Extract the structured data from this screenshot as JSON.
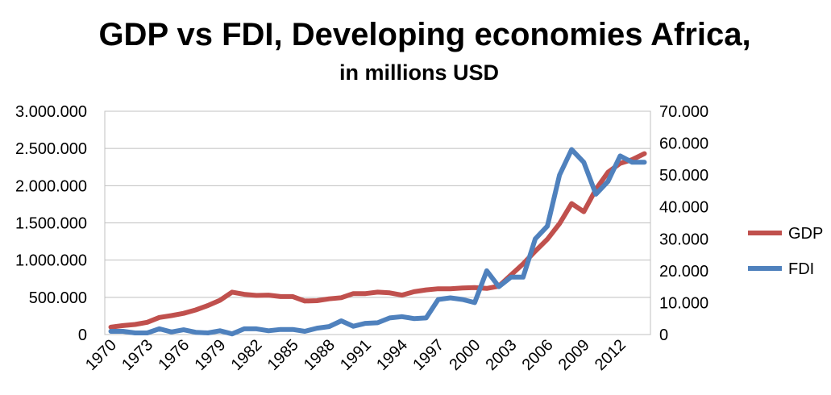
{
  "chart_data": {
    "type": "line",
    "title": "GDP vs FDI, Developing economies Africa,",
    "subtitle": "in millions USD",
    "x": [
      1970,
      1971,
      1972,
      1973,
      1974,
      1975,
      1976,
      1977,
      1978,
      1979,
      1980,
      1981,
      1982,
      1983,
      1984,
      1985,
      1986,
      1987,
      1988,
      1989,
      1990,
      1991,
      1992,
      1993,
      1994,
      1995,
      1996,
      1997,
      1998,
      1999,
      2000,
      2001,
      2002,
      2003,
      2004,
      2005,
      2006,
      2007,
      2008,
      2009,
      2010,
      2011,
      2012,
      2013,
      2014
    ],
    "x_tick_labels": [
      "1970",
      "1973",
      "1976",
      "1979",
      "1982",
      "1985",
      "1988",
      "1991",
      "1994",
      "1997",
      "2000",
      "2003",
      "2006",
      "2009",
      "2012"
    ],
    "y_left": {
      "ylim": [
        0,
        3000000
      ],
      "tick_labels": [
        "0",
        "500.000",
        "1.000.000",
        "1.500.000",
        "2.000.000",
        "2.500.000",
        "3.000.000"
      ],
      "tick_values": [
        0,
        500000,
        1000000,
        1500000,
        2000000,
        2500000,
        3000000
      ]
    },
    "y_right": {
      "ylim": [
        0,
        70000
      ],
      "tick_labels": [
        "0",
        "10.000",
        "20.000",
        "30.000",
        "40.000",
        "50.000",
        "60.000",
        "70.000"
      ],
      "tick_values": [
        0,
        10000,
        20000,
        30000,
        40000,
        50000,
        60000,
        70000
      ]
    },
    "grid": "horizontal",
    "legend_position": "right",
    "series": [
      {
        "name": "GDP",
        "axis": "left",
        "color": "#C0504D",
        "values": [
          100000,
          120000,
          135000,
          165000,
          230000,
          255000,
          285000,
          330000,
          390000,
          460000,
          570000,
          540000,
          525000,
          530000,
          510000,
          510000,
          450000,
          455000,
          480000,
          495000,
          550000,
          550000,
          570000,
          560000,
          530000,
          575000,
          600000,
          615000,
          615000,
          625000,
          630000,
          620000,
          650000,
          800000,
          950000,
          1120000,
          1280000,
          1490000,
          1760000,
          1650000,
          1950000,
          2180000,
          2300000,
          2350000,
          2430000
        ]
      },
      {
        "name": "FDI",
        "axis": "right",
        "color": "#4F81BD",
        "values": [
          1000,
          1000,
          500,
          500,
          1800,
          800,
          1500,
          700,
          500,
          1200,
          200,
          1800,
          1800,
          1200,
          1600,
          1600,
          1000,
          2000,
          2500,
          4300,
          2600,
          3500,
          3700,
          5200,
          5600,
          5000,
          5200,
          11000,
          11500,
          11000,
          10000,
          20000,
          15000,
          18000,
          18000,
          30000,
          34000,
          50000,
          58000,
          54000,
          44000,
          48000,
          56000,
          54000,
          54000
        ]
      }
    ]
  }
}
